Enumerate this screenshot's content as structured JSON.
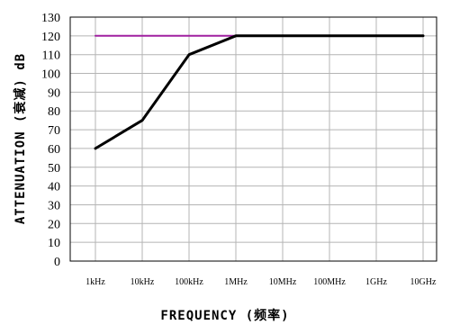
{
  "chart_data": {
    "type": "line",
    "title": "",
    "xlabel": "FREQUENCY (频率)",
    "ylabel": "ATTENUATION (衰减) dB",
    "categories": [
      "1kHz",
      "10kHz",
      "100kHz",
      "1MHz",
      "10MHz",
      "100MHz",
      "1GHz",
      "10GHz"
    ],
    "ylim": [
      0,
      130
    ],
    "yticks": [
      0,
      10,
      20,
      30,
      40,
      50,
      60,
      70,
      80,
      90,
      100,
      110,
      120,
      130
    ],
    "grid": true,
    "legend": "none",
    "series": [
      {
        "color": "#000000",
        "values": [
          60,
          75,
          110,
          120,
          120,
          120,
          120,
          120
        ]
      },
      {
        "color": "#a020a0",
        "values": [
          120,
          120,
          120,
          120,
          120,
          120,
          120,
          120
        ]
      }
    ]
  }
}
